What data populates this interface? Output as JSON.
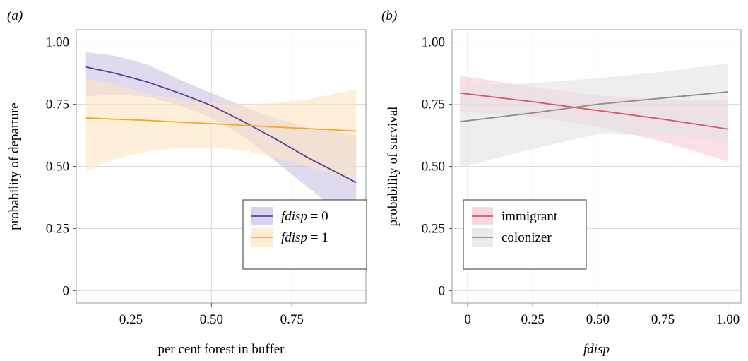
{
  "chart_data": [
    {
      "type": "line",
      "panel_label": "(a)",
      "xlabel": "per cent forest in buffer",
      "ylabel": "probability of departure",
      "xlim": [
        0.08,
        0.98
      ],
      "ylim": [
        -0.05,
        1.05
      ],
      "x_ticks": [
        0.25,
        0.5,
        0.75
      ],
      "x_tick_labels": [
        "0.25",
        "0.50",
        "0.75"
      ],
      "y_ticks": [
        0,
        0.25,
        0.5,
        0.75,
        1.0
      ],
      "y_tick_labels": [
        "0",
        "0.25",
        "0.50",
        "0.75",
        "1.00"
      ],
      "grid": true,
      "legend_position": "bottom-right",
      "series": [
        {
          "legend_italic": "fdisp",
          "legend_rest": " = 0",
          "color": "#5b3fa0",
          "band_color": "#c9c1e3",
          "x": [
            0.11,
            0.2,
            0.3,
            0.4,
            0.5,
            0.6,
            0.7,
            0.8,
            0.95
          ],
          "y": [
            0.9,
            0.875,
            0.84,
            0.795,
            0.745,
            0.68,
            0.61,
            0.535,
            0.435
          ],
          "lower": [
            0.78,
            0.79,
            0.78,
            0.745,
            0.695,
            0.62,
            0.52,
            0.415,
            0.26
          ],
          "upper": [
            0.96,
            0.945,
            0.91,
            0.85,
            0.795,
            0.74,
            0.695,
            0.655,
            0.625
          ]
        },
        {
          "legend_italic": "fdisp",
          "legend_rest": " = 1",
          "color": "#f5a623",
          "band_color": "#fde5c2",
          "x": [
            0.11,
            0.2,
            0.3,
            0.4,
            0.5,
            0.6,
            0.7,
            0.8,
            0.95
          ],
          "y": [
            0.695,
            0.69,
            0.685,
            0.678,
            0.672,
            0.665,
            0.658,
            0.652,
            0.642
          ],
          "lower": [
            0.48,
            0.53,
            0.56,
            0.575,
            0.575,
            0.565,
            0.535,
            0.5,
            0.44
          ],
          "upper": [
            0.855,
            0.83,
            0.79,
            0.77,
            0.755,
            0.75,
            0.755,
            0.77,
            0.81
          ]
        }
      ]
    },
    {
      "type": "line",
      "panel_label": "(b)",
      "xlabel": "fdisp",
      "ylabel": "probability of survival",
      "xlim": [
        -0.06,
        1.05
      ],
      "ylim": [
        -0.05,
        1.05
      ],
      "x_ticks": [
        0,
        0.25,
        0.5,
        0.75,
        1.0
      ],
      "x_tick_labels": [
        "0",
        "0.25",
        "0.50",
        "0.75",
        "1.00"
      ],
      "y_ticks": [
        0,
        0.25,
        0.5,
        0.75,
        1.0
      ],
      "y_tick_labels": [
        "0",
        "0.25",
        "0.50",
        "0.75",
        "1.00"
      ],
      "grid": true,
      "legend_position": "bottom-left",
      "series": [
        {
          "legend_italic": "",
          "legend_rest": "immigrant",
          "color": "#d9566b",
          "band_color": "#f6c9d3",
          "x": [
            -0.03,
            0.25,
            0.5,
            0.75,
            1.0
          ],
          "y": [
            0.795,
            0.76,
            0.725,
            0.69,
            0.65
          ],
          "lower": [
            0.72,
            0.7,
            0.66,
            0.6,
            0.52
          ],
          "upper": [
            0.865,
            0.82,
            0.785,
            0.77,
            0.765
          ]
        },
        {
          "legend_italic": "",
          "legend_rest": "colonizer",
          "color": "#8c8c8c",
          "band_color": "#e3e3e3",
          "x": [
            -0.03,
            0.25,
            0.5,
            0.75,
            1.0
          ],
          "y": [
            0.68,
            0.715,
            0.75,
            0.775,
            0.8
          ],
          "lower": [
            0.495,
            0.57,
            0.63,
            0.625,
            0.605
          ],
          "upper": [
            0.82,
            0.835,
            0.855,
            0.88,
            0.915
          ]
        }
      ]
    }
  ]
}
